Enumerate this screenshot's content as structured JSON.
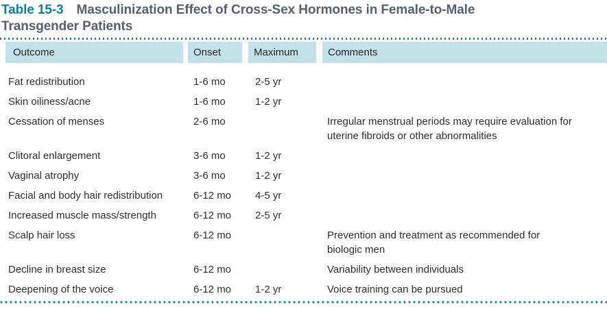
{
  "title": {
    "table_label": "Table 15-3",
    "heading_line1": "Masculinization Effect of Cross-Sex Hormones in Female-to-Male",
    "heading_line2": "Transgender Patients"
  },
  "colors": {
    "accent_teal": "#0f7f95",
    "heading_text": "#565f6d",
    "header_row_bg": "#c3e1e9",
    "body_text": "#2b2d30"
  },
  "table": {
    "columns": [
      {
        "key": "outcome",
        "label": "Outcome"
      },
      {
        "key": "onset",
        "label": "Onset"
      },
      {
        "key": "maximum",
        "label": "Maximum"
      },
      {
        "key": "comments",
        "label": "Comments"
      }
    ],
    "rows": [
      {
        "outcome": "Fat redistribution",
        "onset": "1-6 mo",
        "maximum": "2-5 yr",
        "comments": ""
      },
      {
        "outcome": "Skin oiliness/acne",
        "onset": "1-6 mo",
        "maximum": "1-2 yr",
        "comments": ""
      },
      {
        "outcome": "Cessation of menses",
        "onset": "2-6 mo",
        "maximum": "",
        "comments": "Irregular menstrual periods may require evaluation for\nuterine fibroids or other abnormalities"
      },
      {
        "outcome": "Clitoral enlargement",
        "onset": "3-6 mo",
        "maximum": "1-2 yr",
        "comments": ""
      },
      {
        "outcome": "Vaginal atrophy",
        "onset": "3-6 mo",
        "maximum": "1-2 yr",
        "comments": ""
      },
      {
        "outcome": "Facial and body hair redistribution",
        "onset": "6-12 mo",
        "maximum": "4-5 yr",
        "comments": ""
      },
      {
        "outcome": "Increased muscle mass/strength",
        "onset": "6-12 mo",
        "maximum": "2-5 yr",
        "comments": ""
      },
      {
        "outcome": "Scalp hair loss",
        "onset": "6-12 mo",
        "maximum": "",
        "comments": "Prevention and treatment as recommended for\nbiologic men"
      },
      {
        "outcome": "Decline in breast size",
        "onset": "6-12 mo",
        "maximum": "",
        "comments": "Variability between individuals"
      },
      {
        "outcome": "Deepening of the voice",
        "onset": "6-12 mo",
        "maximum": "1-2 yr",
        "comments": "Voice training can be pursued"
      }
    ]
  }
}
